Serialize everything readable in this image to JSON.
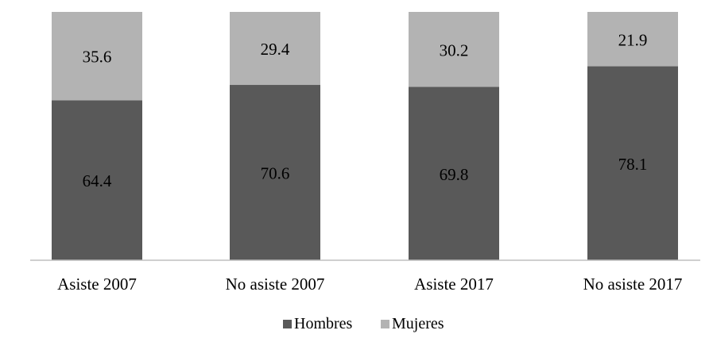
{
  "chart_data": {
    "type": "bar",
    "stacked": true,
    "percent_stacked": true,
    "categories": [
      "Asiste 2007",
      "No asiste 2007",
      "Asiste 2017",
      "No asiste 2017"
    ],
    "series": [
      {
        "name": "Hombres",
        "values": [
          64.4,
          70.6,
          69.8,
          78.1
        ],
        "color": "#595959"
      },
      {
        "name": "Mujeres",
        "values": [
          35.6,
          29.4,
          30.2,
          21.9
        ],
        "color": "#b3b3b3"
      }
    ],
    "data_labels": {
      "Hombres": [
        "64.4",
        "70.6",
        "69.8",
        "78.1"
      ],
      "Mujeres": [
        "35.6",
        "29.4",
        "30.2",
        "21.9"
      ]
    },
    "ylim": [
      0,
      100
    ],
    "grid": false,
    "y_axis_visible": false,
    "legend_position": "bottom-center",
    "title": "",
    "xlabel": "",
    "ylabel": "",
    "axis_color": "#bfbfbf",
    "label_color": "#000000"
  }
}
